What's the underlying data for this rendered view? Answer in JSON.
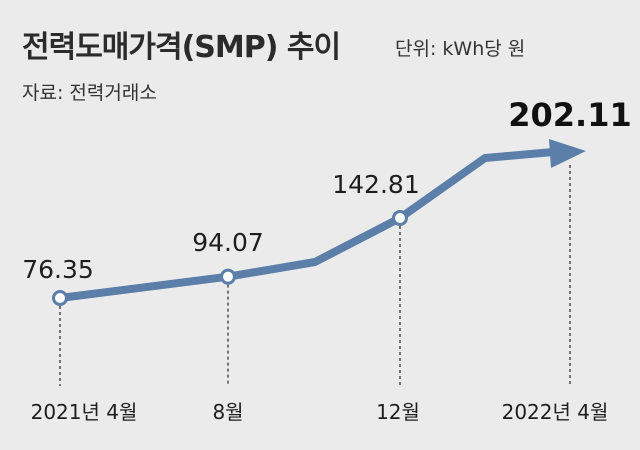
{
  "header": {
    "title": "전력도매가격(SMP) 추이",
    "unit": "단위: kWh당 원",
    "source": "자료: 전력거래소"
  },
  "colors": {
    "background": "#ebebeb",
    "line": "#5b7fa8",
    "marker_fill": "#ffffff",
    "dashed_guide": "#333333"
  },
  "chart_data": {
    "type": "line",
    "title": "전력도매가격(SMP) 추이",
    "ylabel": "단위: kWh당 원",
    "categories": [
      "2021년 4월",
      "8월",
      "12월",
      "2022년 4월"
    ],
    "values": [
      76.35,
      94.07,
      142.81,
      202.11
    ],
    "value_labels": [
      "76.35",
      "94.07",
      "142.81",
      "202.11"
    ],
    "series": [
      {
        "name": "SMP",
        "values": [
          76.35,
          94.07,
          142.81,
          202.11
        ]
      }
    ],
    "highlight_last": true,
    "end_marker": "arrow",
    "grid": false
  }
}
